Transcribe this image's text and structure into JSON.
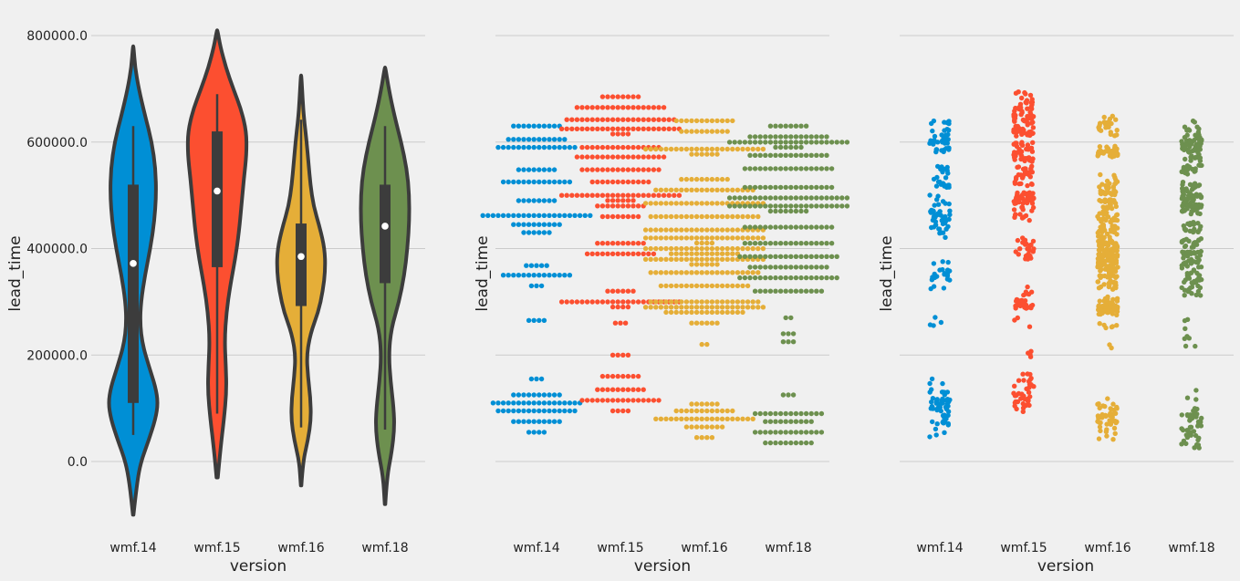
{
  "chart_data": {
    "categories": [
      "wmf.14",
      "wmf.15",
      "wmf.16",
      "wmf.18"
    ],
    "colors": [
      "#008fd5",
      "#fc4f30",
      "#e5ae38",
      "#6d904f"
    ],
    "ylim": [
      -150000,
      830000
    ],
    "yticks": [
      0,
      200000,
      400000,
      600000,
      800000
    ],
    "ytick_labels": [
      "0.0",
      "200000.0",
      "400000.0",
      "600000.0",
      "800000.0"
    ],
    "grid": "horizontal",
    "xlabel": "version",
    "ylabel": "lead_time",
    "panels": [
      {
        "type": "violin",
        "show_yticklabels": true,
        "violins": [
          {
            "category": "wmf.14",
            "range": [
              -100000,
              780000
            ],
            "quartiles": [
              110000,
              520000
            ],
            "whiskers": [
              50000,
              630000
            ],
            "median": 372000,
            "density": [
              [
                -100000,
                0.01
              ],
              [
                -40000,
                0.12
              ],
              [
                0,
                0.25
              ],
              [
                40000,
                0.5
              ],
              [
                80000,
                0.72
              ],
              [
                110000,
                0.8
              ],
              [
                140000,
                0.72
              ],
              [
                180000,
                0.5
              ],
              [
                220000,
                0.3
              ],
              [
                260000,
                0.22
              ],
              [
                300000,
                0.25
              ],
              [
                350000,
                0.38
              ],
              [
                400000,
                0.55
              ],
              [
                450000,
                0.68
              ],
              [
                500000,
                0.74
              ],
              [
                550000,
                0.72
              ],
              [
                600000,
                0.6
              ],
              [
                650000,
                0.38
              ],
              [
                700000,
                0.18
              ],
              [
                740000,
                0.06
              ],
              [
                780000,
                0.01
              ]
            ]
          },
          {
            "category": "wmf.15",
            "range": [
              -30000,
              810000
            ],
            "quartiles": [
              365000,
              620000
            ],
            "whiskers": [
              90000,
              690000
            ],
            "median": 508000,
            "density": [
              [
                -30000,
                0.02
              ],
              [
                20000,
                0.1
              ],
              [
                80000,
                0.22
              ],
              [
                130000,
                0.3
              ],
              [
                180000,
                0.28
              ],
              [
                230000,
                0.24
              ],
              [
                280000,
                0.3
              ],
              [
                330000,
                0.42
              ],
              [
                380000,
                0.58
              ],
              [
                430000,
                0.7
              ],
              [
                480000,
                0.78
              ],
              [
                530000,
                0.86
              ],
              [
                580000,
                0.95
              ],
              [
                620000,
                0.94
              ],
              [
                660000,
                0.78
              ],
              [
                700000,
                0.52
              ],
              [
                740000,
                0.28
              ],
              [
                780000,
                0.1
              ],
              [
                810000,
                0.01
              ]
            ]
          },
          {
            "category": "wmf.16",
            "range": [
              -45000,
              725000
            ],
            "quartiles": [
              292000,
              447000
            ],
            "whiskers": [
              64000,
              642000
            ],
            "median": 385000,
            "density": [
              [
                -45000,
                0.01
              ],
              [
                0,
                0.06
              ],
              [
                40000,
                0.22
              ],
              [
                80000,
                0.32
              ],
              [
                120000,
                0.3
              ],
              [
                160000,
                0.22
              ],
              [
                200000,
                0.18
              ],
              [
                240000,
                0.3
              ],
              [
                280000,
                0.55
              ],
              [
                320000,
                0.7
              ],
              [
                360000,
                0.78
              ],
              [
                400000,
                0.76
              ],
              [
                440000,
                0.6
              ],
              [
                480000,
                0.4
              ],
              [
                520000,
                0.3
              ],
              [
                560000,
                0.24
              ],
              [
                600000,
                0.18
              ],
              [
                640000,
                0.1
              ],
              [
                680000,
                0.05
              ],
              [
                725000,
                0.01
              ]
            ]
          },
          {
            "category": "wmf.18",
            "range": [
              -80000,
              740000
            ],
            "quartiles": [
              335000,
              520000
            ],
            "whiskers": [
              60000,
              630000
            ],
            "median": 442000,
            "density": [
              [
                -80000,
                0.01
              ],
              [
                -30000,
                0.06
              ],
              [
                20000,
                0.22
              ],
              [
                60000,
                0.3
              ],
              [
                100000,
                0.28
              ],
              [
                150000,
                0.18
              ],
              [
                200000,
                0.12
              ],
              [
                250000,
                0.2
              ],
              [
                300000,
                0.45
              ],
              [
                350000,
                0.62
              ],
              [
                400000,
                0.72
              ],
              [
                450000,
                0.78
              ],
              [
                500000,
                0.78
              ],
              [
                550000,
                0.7
              ],
              [
                600000,
                0.52
              ],
              [
                650000,
                0.3
              ],
              [
                700000,
                0.12
              ],
              [
                740000,
                0.01
              ]
            ]
          }
        ]
      },
      {
        "type": "swarm",
        "show_yticklabels": false,
        "clusters": [
          {
            "category": "wmf.14",
            "groups": [
              [
                55000,
                4
              ],
              [
                75000,
                10
              ],
              [
                95000,
                16
              ],
              [
                110000,
                18
              ],
              [
                125000,
                10
              ],
              [
                155000,
                3
              ],
              [
                265000,
                4
              ],
              [
                330000,
                3
              ],
              [
                350000,
                14
              ],
              [
                368000,
                5
              ],
              [
                430000,
                6
              ],
              [
                445000,
                10
              ],
              [
                462000,
                22
              ],
              [
                490000,
                8
              ],
              [
                525000,
                14
              ],
              [
                548000,
                8
              ],
              [
                590000,
                16
              ],
              [
                605000,
                12
              ],
              [
                630000,
                10
              ]
            ]
          },
          {
            "category": "wmf.15",
            "groups": [
              [
                95000,
                4
              ],
              [
                115000,
                16
              ],
              [
                135000,
                10
              ],
              [
                160000,
                8
              ],
              [
                200000,
                4
              ],
              [
                260000,
                3
              ],
              [
                295000,
                28
              ],
              [
                320000,
                6
              ],
              [
                390000,
                14
              ],
              [
                410000,
                10
              ],
              [
                460000,
                8
              ],
              [
                480000,
                10
              ],
              [
                495000,
                30
              ],
              [
                525000,
                12
              ],
              [
                548000,
                16
              ],
              [
                572000,
                18
              ],
              [
                590000,
                16
              ],
              [
                620000,
                28
              ],
              [
                642000,
                22
              ],
              [
                665000,
                18
              ],
              [
                685000,
                8
              ]
            ]
          },
          {
            "category": "wmf.16",
            "groups": [
              [
                45000,
                4
              ],
              [
                65000,
                8
              ],
              [
                80000,
                20
              ],
              [
                95000,
                12
              ],
              [
                108000,
                6
              ],
              [
                220000,
                2
              ],
              [
                260000,
                6
              ],
              [
                285000,
                40
              ],
              [
                300000,
                22
              ],
              [
                330000,
                18
              ],
              [
                355000,
                22
              ],
              [
                375000,
                30
              ],
              [
                395000,
                38
              ],
              [
                415000,
                28
              ],
              [
                435000,
                24
              ],
              [
                460000,
                22
              ],
              [
                485000,
                24
              ],
              [
                510000,
                20
              ],
              [
                530000,
                10
              ],
              [
                582000,
                30
              ],
              [
                620000,
                10
              ],
              [
                640000,
                12
              ]
            ]
          },
          {
            "category": "wmf.18",
            "groups": [
              [
                35000,
                10
              ],
              [
                55000,
                14
              ],
              [
                75000,
                10
              ],
              [
                90000,
                14
              ],
              [
                125000,
                3
              ],
              [
                225000,
                3
              ],
              [
                240000,
                3
              ],
              [
                270000,
                2
              ],
              [
                320000,
                14
              ],
              [
                345000,
                20
              ],
              [
                365000,
                16
              ],
              [
                385000,
                20
              ],
              [
                410000,
                18
              ],
              [
                440000,
                18
              ],
              [
                475000,
                32
              ],
              [
                495000,
                24
              ],
              [
                515000,
                18
              ],
              [
                550000,
                18
              ],
              [
                575000,
                16
              ],
              [
                595000,
                30
              ],
              [
                610000,
                16
              ],
              [
                630000,
                8
              ]
            ]
          }
        ]
      },
      {
        "type": "strip",
        "show_yticklabels": false,
        "source": "same points as swarm, jittered"
      }
    ]
  }
}
